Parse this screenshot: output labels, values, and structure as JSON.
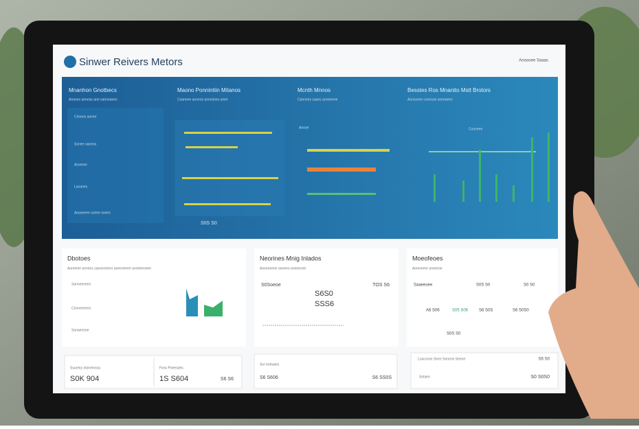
{
  "header": {
    "logo": "Sinwer Reivers Metors",
    "top_right": "Anoooee Saaas"
  },
  "blue_panels": [
    {
      "title": "Mnanhon Gnotbecs",
      "subtitle": "Anoneo anneas ane sanneaees",
      "rows": [
        "Cnnees aonee",
        "Sonee oaneos",
        "Aroenee",
        "Laoanes",
        "Anaoeeee sonee ooees"
      ]
    },
    {
      "title": "Maono Ponnintiin Mitanos",
      "subtitle": "Coaneee anneos annesees anee",
      "footer": "S0S S0"
    },
    {
      "title": "Mcnth Mnnos",
      "subtitle": "Cannees saaes anneeeee",
      "label": "Anooe"
    },
    {
      "title": "Besstes Ros Mnanito Mstt Brotors",
      "subtitle": "Aonssese conesoe onneaees",
      "label": "Conoeee"
    }
  ],
  "cards": [
    {
      "title": "Dbotoes",
      "subtitle": "Aoneeee anneos sanoeeoees aneeoeeee aoneeeoeee",
      "rows": [
        "Sanoeeoees",
        "Conoeeoees",
        "Sonaeeooe"
      ]
    },
    {
      "title": "Neorines Mnig Inlados",
      "subtitle": "Aneoneeee anneeo aoneeoee",
      "values": [
        "S0Soeoe",
        "TOS S6",
        "S6S0",
        "SSS6"
      ]
    },
    {
      "title": "Moeofeoes",
      "subtitle": "Aoneoeee anneeoe",
      "values": [
        "Saaeeoee",
        "S0S S0",
        "S0 S0",
        "A6 S06",
        "S05 S06",
        "S6 S0S",
        "S6 S0S0",
        "S0S S0"
      ]
    }
  ],
  "footer_cards": [
    {
      "title": "Suueiny otoneinnsa",
      "value": "S0K 904"
    },
    {
      "title": "Fons Poeesdes",
      "value": "1S S604",
      "side": "S6 S6"
    },
    {
      "title": "Sre Inebates",
      "value": "S6 S606",
      "side": "S6 SS0S"
    },
    {
      "title": "Loaccnoe Snee Soneoe Seeoe",
      "value": "S5 S0",
      "label": "Sntaeo",
      "side": "S0 S0S0"
    }
  ]
}
